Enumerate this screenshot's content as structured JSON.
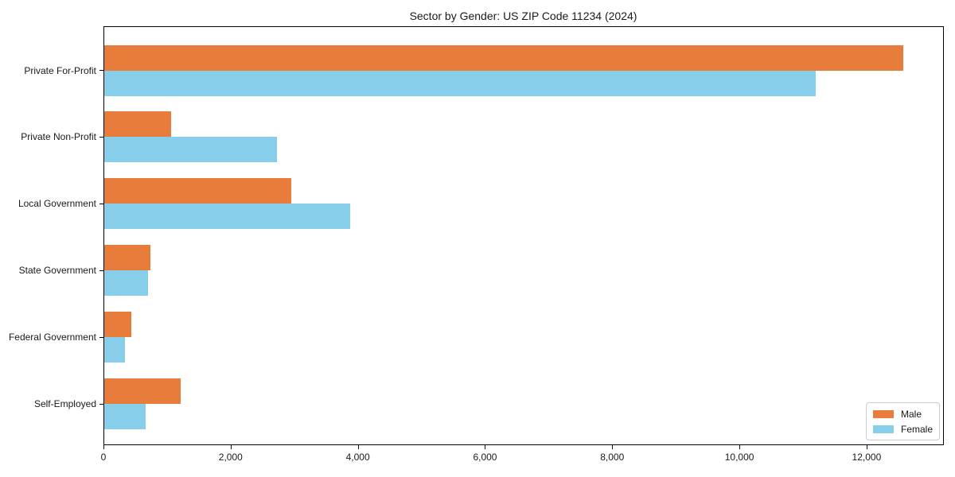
{
  "chart_data": {
    "type": "bar",
    "orientation": "horizontal",
    "title": "Sector by Gender: US ZIP Code 11234 (2024)",
    "categories": [
      "Private For-Profit",
      "Private Non-Profit",
      "Local Government",
      "State Government",
      "Federal Government",
      "Self-Employed"
    ],
    "series": [
      {
        "name": "Male",
        "color": "#e87c3a",
        "values": [
          12560,
          1050,
          2940,
          730,
          420,
          1200
        ]
      },
      {
        "name": "Female",
        "color": "#87ceeb",
        "values": [
          11190,
          2720,
          3870,
          685,
          330,
          650
        ]
      }
    ],
    "xlabel": "",
    "ylabel": "",
    "xlim": [
      0,
      13190
    ],
    "xticks": {
      "values": [
        0,
        2000,
        4000,
        6000,
        8000,
        10000,
        12000
      ],
      "labels": [
        "0",
        "2,000",
        "4,000",
        "6,000",
        "8,000",
        "10,000",
        "12,000"
      ]
    },
    "grid": false,
    "legend": {
      "position": "lower right",
      "entries": [
        "Male",
        "Female"
      ]
    }
  }
}
